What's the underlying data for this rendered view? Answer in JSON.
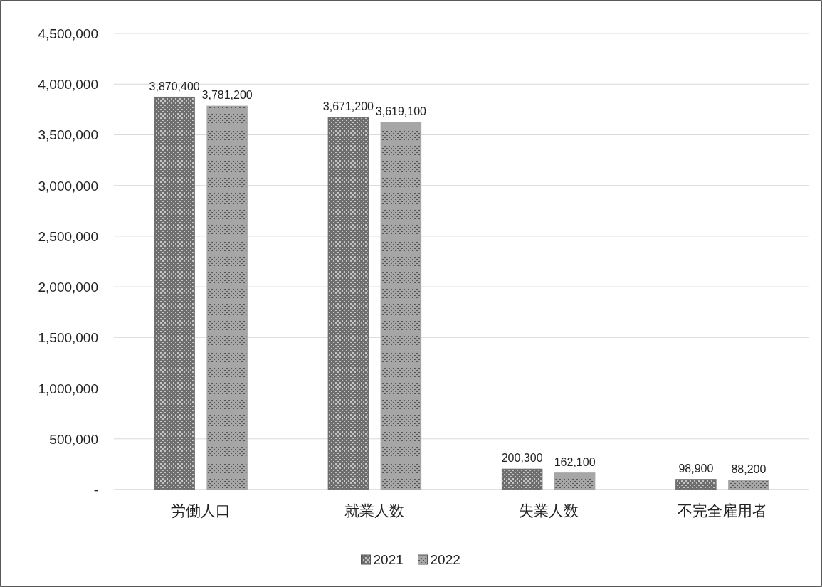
{
  "chart_data": {
    "type": "bar",
    "categories": [
      "労働人口",
      "就業人数",
      "失業人数",
      "不完全雇用者"
    ],
    "series": [
      {
        "name": "2021",
        "color": "#6e6e6e",
        "values": [
          3870400,
          3671200,
          200300,
          98900
        ],
        "value_labels": [
          "3,870,400",
          "3,671,200",
          "200,300",
          "98,900"
        ]
      },
      {
        "name": "2022",
        "color": "#a6a6a6",
        "values": [
          3781200,
          3619100,
          162100,
          88200
        ],
        "value_labels": [
          "3,781,200",
          "3,619,100",
          "162,100",
          "88,200"
        ]
      }
    ],
    "ylim": [
      0,
      4500000
    ],
    "yticks": [
      {
        "value": 0,
        "label": "-"
      },
      {
        "value": 500000,
        "label": "500,000"
      },
      {
        "value": 1000000,
        "label": "1,000,000"
      },
      {
        "value": 1500000,
        "label": "1,500,000"
      },
      {
        "value": 2000000,
        "label": "2,000,000"
      },
      {
        "value": 2500000,
        "label": "2,500,000"
      },
      {
        "value": 3000000,
        "label": "3,000,000"
      },
      {
        "value": 3500000,
        "label": "3,500,000"
      },
      {
        "value": 4000000,
        "label": "4,000,000"
      },
      {
        "value": 4500000,
        "label": "4,500,000"
      }
    ],
    "grid": "y",
    "legend": "bottom"
  }
}
